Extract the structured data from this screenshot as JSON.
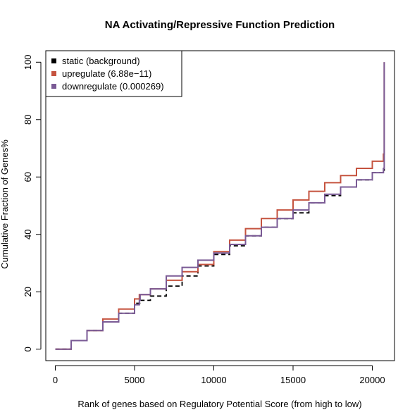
{
  "chart_data": {
    "type": "line",
    "title": "NA Activating/Repressive Function Prediction",
    "xlabel": "Rank of genes based on Regulatory Potential Score (from high to low)",
    "ylabel": "Cumulative Fraction of Genes%",
    "xlim": [
      -600,
      21400
    ],
    "ylim": [
      -4,
      104
    ],
    "x_ticks": [
      0,
      5000,
      10000,
      15000,
      20000
    ],
    "y_ticks": [
      0,
      20,
      40,
      60,
      80,
      100
    ],
    "legend_position": "top-left",
    "series": [
      {
        "name": "static (background)",
        "color": "#000000",
        "style": "dashed",
        "points": [
          [
            0,
            0
          ],
          [
            1000,
            3
          ],
          [
            2000,
            6.5
          ],
          [
            3000,
            9.5
          ],
          [
            4000,
            12.5
          ],
          [
            5000,
            16
          ],
          [
            5400,
            17
          ],
          [
            6000,
            18.5
          ],
          [
            7000,
            22
          ],
          [
            8000,
            25.5
          ],
          [
            9000,
            29
          ],
          [
            10000,
            33
          ],
          [
            11000,
            36
          ],
          [
            12000,
            39.5
          ],
          [
            13000,
            42.5
          ],
          [
            14000,
            45.5
          ],
          [
            15000,
            47.5
          ],
          [
            16000,
            51
          ],
          [
            17000,
            53.5
          ],
          [
            18000,
            56.5
          ],
          [
            19000,
            59
          ],
          [
            20000,
            61.5
          ],
          [
            20750,
            63
          ]
        ]
      },
      {
        "name": "upregulate (6.88e−11)",
        "color": "#c5533f",
        "style": "solid",
        "points": [
          [
            0,
            0
          ],
          [
            1000,
            3
          ],
          [
            2000,
            6.5
          ],
          [
            3000,
            10.5
          ],
          [
            4000,
            14
          ],
          [
            5000,
            17.5
          ],
          [
            5300,
            19
          ],
          [
            6000,
            21
          ],
          [
            7000,
            24
          ],
          [
            8000,
            27
          ],
          [
            9000,
            29.5
          ],
          [
            10000,
            34
          ],
          [
            11000,
            38
          ],
          [
            12000,
            42
          ],
          [
            13000,
            45.5
          ],
          [
            14000,
            48.5
          ],
          [
            15000,
            52
          ],
          [
            16000,
            55
          ],
          [
            17000,
            58
          ],
          [
            18000,
            60.5
          ],
          [
            19000,
            63
          ],
          [
            20000,
            65.5
          ],
          [
            20700,
            68
          ],
          [
            20750,
            100
          ]
        ]
      },
      {
        "name": "downregulate (0.000269)",
        "color": "#7a5a95",
        "style": "solid",
        "points": [
          [
            0,
            0
          ],
          [
            1000,
            3
          ],
          [
            2000,
            6.5
          ],
          [
            3000,
            9.5
          ],
          [
            4000,
            12.5
          ],
          [
            5000,
            15.5
          ],
          [
            5300,
            17
          ],
          [
            5350,
            19
          ],
          [
            6000,
            21
          ],
          [
            7000,
            25.5
          ],
          [
            8000,
            28.5
          ],
          [
            9000,
            31
          ],
          [
            10000,
            33.5
          ],
          [
            11000,
            36.5
          ],
          [
            12000,
            39.5
          ],
          [
            13000,
            42.5
          ],
          [
            14000,
            45.5
          ],
          [
            15000,
            48.5
          ],
          [
            16000,
            51
          ],
          [
            17000,
            54
          ],
          [
            18000,
            56.5
          ],
          [
            19000,
            59
          ],
          [
            20000,
            61.5
          ],
          [
            20700,
            63
          ],
          [
            20750,
            100
          ]
        ]
      }
    ]
  }
}
